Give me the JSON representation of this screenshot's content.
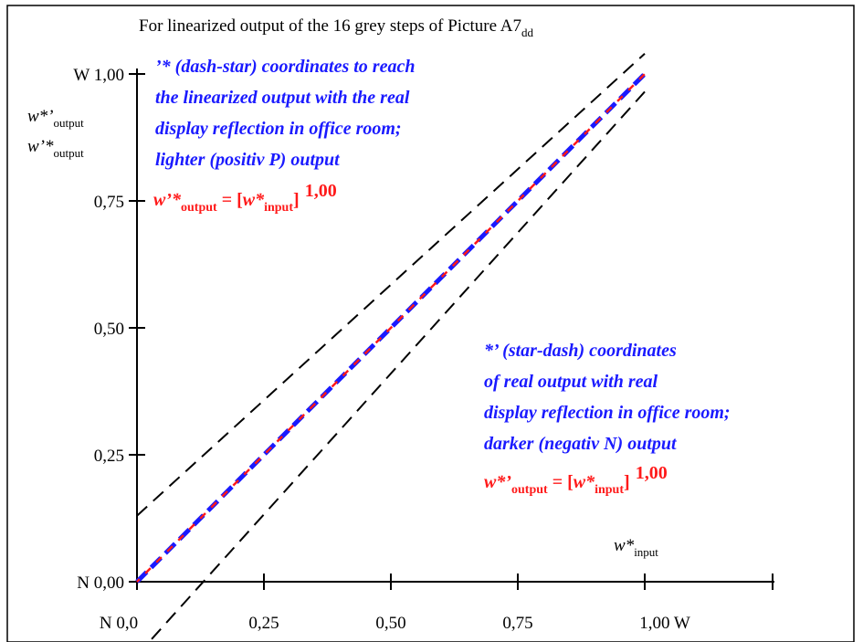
{
  "chart_data": {
    "type": "line",
    "title": "For linearized output of the 16 grey steps of Picture A7",
    "title_subscript": "dd",
    "xlim": [
      0,
      1
    ],
    "ylim": [
      0,
      1
    ],
    "x_ticks": [
      {
        "value": 0.0,
        "label": "N  0,0"
      },
      {
        "value": 0.25,
        "label": "0,25"
      },
      {
        "value": 0.5,
        "label": "0,50"
      },
      {
        "value": 0.75,
        "label": "0,75"
      },
      {
        "value": 1.0,
        "label": "1,00  W"
      }
    ],
    "y_ticks": [
      {
        "value": 0.0,
        "label": "N 0,00"
      },
      {
        "value": 0.25,
        "label": "0,25"
      },
      {
        "value": 0.5,
        "label": "0,50"
      },
      {
        "value": 0.75,
        "label": "0,75"
      },
      {
        "value": 1.0,
        "label": "W 1,00"
      }
    ],
    "ylabel_lines": [
      {
        "main": "w*’",
        "sub": "output"
      },
      {
        "main": "w’*",
        "sub": "output"
      }
    ],
    "xlabel": {
      "main": "w*",
      "sub": "input"
    },
    "series": [
      {
        "name": "w*’ (blue dashed)",
        "color": "#1a1aff",
        "x": [
          0,
          0.0667,
          0.1333,
          0.2,
          0.2667,
          0.3333,
          0.4,
          0.4667,
          0.5333,
          0.6,
          0.6667,
          0.7333,
          0.8,
          0.8667,
          0.9333,
          1.0
        ],
        "y": [
          0,
          0.0667,
          0.1333,
          0.2,
          0.2667,
          0.3333,
          0.4,
          0.4667,
          0.5333,
          0.6,
          0.6667,
          0.7333,
          0.8,
          0.8667,
          0.9333,
          1.0
        ]
      },
      {
        "name": "w’* (red dashed)",
        "color": "#ff1a1a",
        "x": [
          0,
          0.0667,
          0.1333,
          0.2,
          0.2667,
          0.3333,
          0.4,
          0.4667,
          0.5333,
          0.6,
          0.6667,
          0.7333,
          0.8,
          0.8667,
          0.9333,
          1.0
        ],
        "y": [
          0,
          0.0667,
          0.1333,
          0.2,
          0.2667,
          0.3333,
          0.4,
          0.4667,
          0.5333,
          0.6,
          0.6667,
          0.7333,
          0.8,
          0.8667,
          0.9333,
          1.0
        ]
      }
    ],
    "guide_lines": [
      {
        "color": "#000000",
        "x": [
          0,
          1.0
        ],
        "y": [
          0.13,
          1.04
        ]
      },
      {
        "color": "#000000",
        "x": [
          0,
          1.0
        ],
        "y": [
          -0.145,
          0.965
        ]
      }
    ],
    "annotation_upper": {
      "lines": [
        "’* (dash-star) coordinates to reach",
        "the linearized output with the real",
        "display reflection in office room;",
        "lighter (positiv P) output"
      ],
      "formula": {
        "lhs": "w’*",
        "lhs_sub": "output",
        "eq": " = [",
        "var": "w*",
        "var_sub": "input",
        "close": "]",
        "exp": "1,00"
      }
    },
    "annotation_lower": {
      "lines": [
        "*’ (star-dash) coordinates",
        "of real output with real",
        "display reflection in office room;",
        "darker (negativ N) output"
      ],
      "formula": {
        "lhs": "w*’",
        "lhs_sub": "output",
        "eq": " = [",
        "var": "w*",
        "var_sub": "input",
        "close": "]",
        "exp": "1,00"
      }
    },
    "colors": {
      "blue": "#1a1aff",
      "red": "#ff1a1a",
      "axis": "#000000"
    }
  }
}
